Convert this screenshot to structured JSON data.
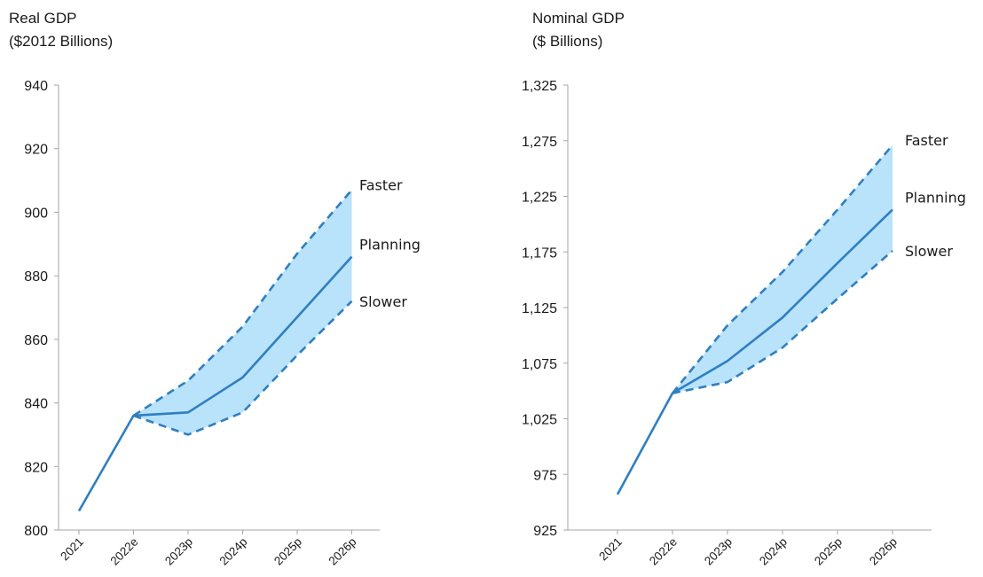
{
  "colors": {
    "line": "#2f7fc1",
    "band": "#b9e2fb",
    "axis": "#a6a6a6",
    "text": "#1a1a1a"
  },
  "chart_data": [
    {
      "type": "line",
      "title": "Real GDP",
      "subtitle": "($2012 Billions)",
      "categories": [
        "2021",
        "2022e",
        "2023p",
        "2024p",
        "2025p",
        "2026p"
      ],
      "ylim": [
        800,
        940
      ],
      "yticks": [
        "800",
        "820",
        "840",
        "860",
        "880",
        "900",
        "920",
        "940"
      ],
      "grid": false,
      "series": [
        {
          "name": "Planning",
          "style": "solid",
          "values": [
            806,
            836,
            837,
            848,
            867,
            886
          ]
        },
        {
          "name": "Faster",
          "style": "dashed",
          "values": [
            null,
            836,
            847,
            864,
            887,
            907
          ]
        },
        {
          "name": "Slower",
          "style": "dashed",
          "values": [
            null,
            836,
            830,
            837,
            855,
            872
          ]
        }
      ]
    },
    {
      "type": "line",
      "title": "Nominal GDP",
      "subtitle": "($ Billions)",
      "categories": [
        "2021",
        "2022e",
        "2023p",
        "2024p",
        "2025p",
        "2026p"
      ],
      "ylim": [
        925,
        1325
      ],
      "yticks": [
        "925",
        "975",
        "1,025",
        "1,075",
        "1,125",
        "1,175",
        "1,225",
        "1,275",
        "1,325"
      ],
      "grid": false,
      "series": [
        {
          "name": "Planning",
          "style": "solid",
          "values": [
            957,
            1048,
            1077,
            1116,
            1165,
            1213
          ]
        },
        {
          "name": "Faster",
          "style": "dashed",
          "values": [
            null,
            1048,
            1109,
            1157,
            1213,
            1271
          ]
        },
        {
          "name": "Slower",
          "style": "dashed",
          "values": [
            null,
            1048,
            1058,
            1089,
            1133,
            1176
          ]
        }
      ]
    }
  ]
}
